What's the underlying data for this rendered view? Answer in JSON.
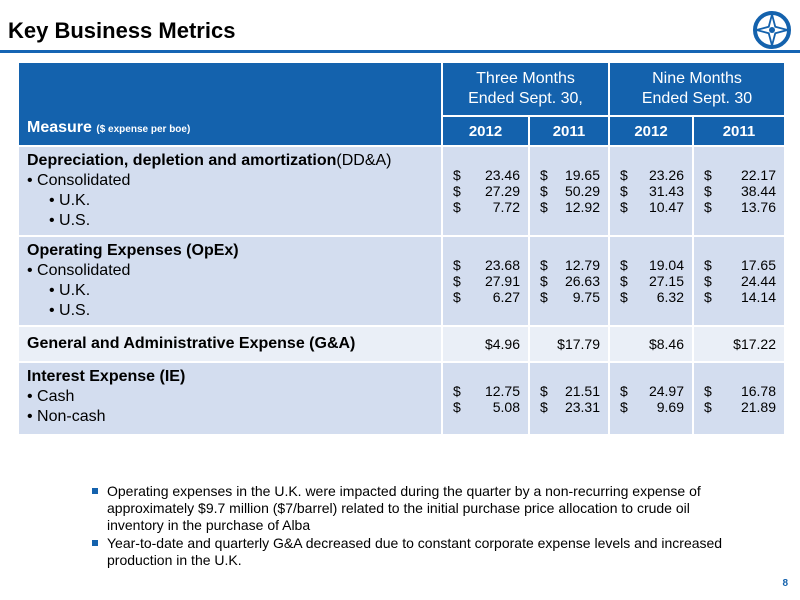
{
  "header": {
    "title": "Key Business Metrics"
  },
  "table": {
    "measure_label": "Measure",
    "measure_sub": "($ expense per boe)",
    "group_three": [
      "Three Months",
      "Ended Sept. 30,"
    ],
    "group_nine": [
      "Nine Months",
      "Ended Sept. 30"
    ],
    "years": [
      "2012",
      "2011",
      "2012",
      "2011"
    ],
    "rows": {
      "dda": {
        "title": "Depreciation, depletion and amortization",
        "title_suffix": "(DD&A)",
        "items": [
          "• Consolidated",
          "• U.K.",
          "• U.S."
        ],
        "cols": [
          [
            "23.46",
            "27.29",
            "7.72"
          ],
          [
            "19.65",
            "50.29",
            "12.92"
          ],
          [
            "23.26",
            "31.43",
            "10.47"
          ],
          [
            "22.17",
            "38.44",
            "13.76"
          ]
        ]
      },
      "opex": {
        "title": "Operating Expenses (OpEx)",
        "items": [
          "• Consolidated",
          "• U.K.",
          "• U.S."
        ],
        "cols": [
          [
            "23.68",
            "27.91",
            "6.27"
          ],
          [
            "12.79",
            "26.63",
            "9.75"
          ],
          [
            "19.04",
            "27.15",
            "6.32"
          ],
          [
            "17.65",
            "24.44",
            "14.14"
          ]
        ]
      },
      "ga": {
        "title": "General and Administrative Expense (G&A)",
        "values": [
          "$4.96",
          "$17.79",
          "$8.46",
          "$17.22"
        ]
      },
      "ie": {
        "title": "Interest Expense (IE)",
        "items": [
          "• Cash",
          "• Non-cash"
        ],
        "cols": [
          [
            "12.75",
            "5.08"
          ],
          [
            "21.51",
            "23.31"
          ],
          [
            "24.97",
            "9.69"
          ],
          [
            "16.78",
            "21.89"
          ]
        ]
      }
    },
    "currency": "$"
  },
  "notes": [
    "Operating expenses in the U.K. were impacted during the quarter by a non-recurring expense of approximately $9.7 million ($7/barrel) related to the initial purchase price allocation to crude oil inventory in the purchase of Alba",
    "Year-to-date and quarterly G&A decreased due to constant corporate expense levels and increased production in the U.K."
  ],
  "footer": {
    "page_number": "8"
  },
  "colors": {
    "accent": "#1462ad",
    "row_dark": "#d3ddef",
    "row_light": "#eaeff7"
  },
  "icons": {
    "logo": "compass-star-logo",
    "bullet": "square-bullet-icon"
  }
}
